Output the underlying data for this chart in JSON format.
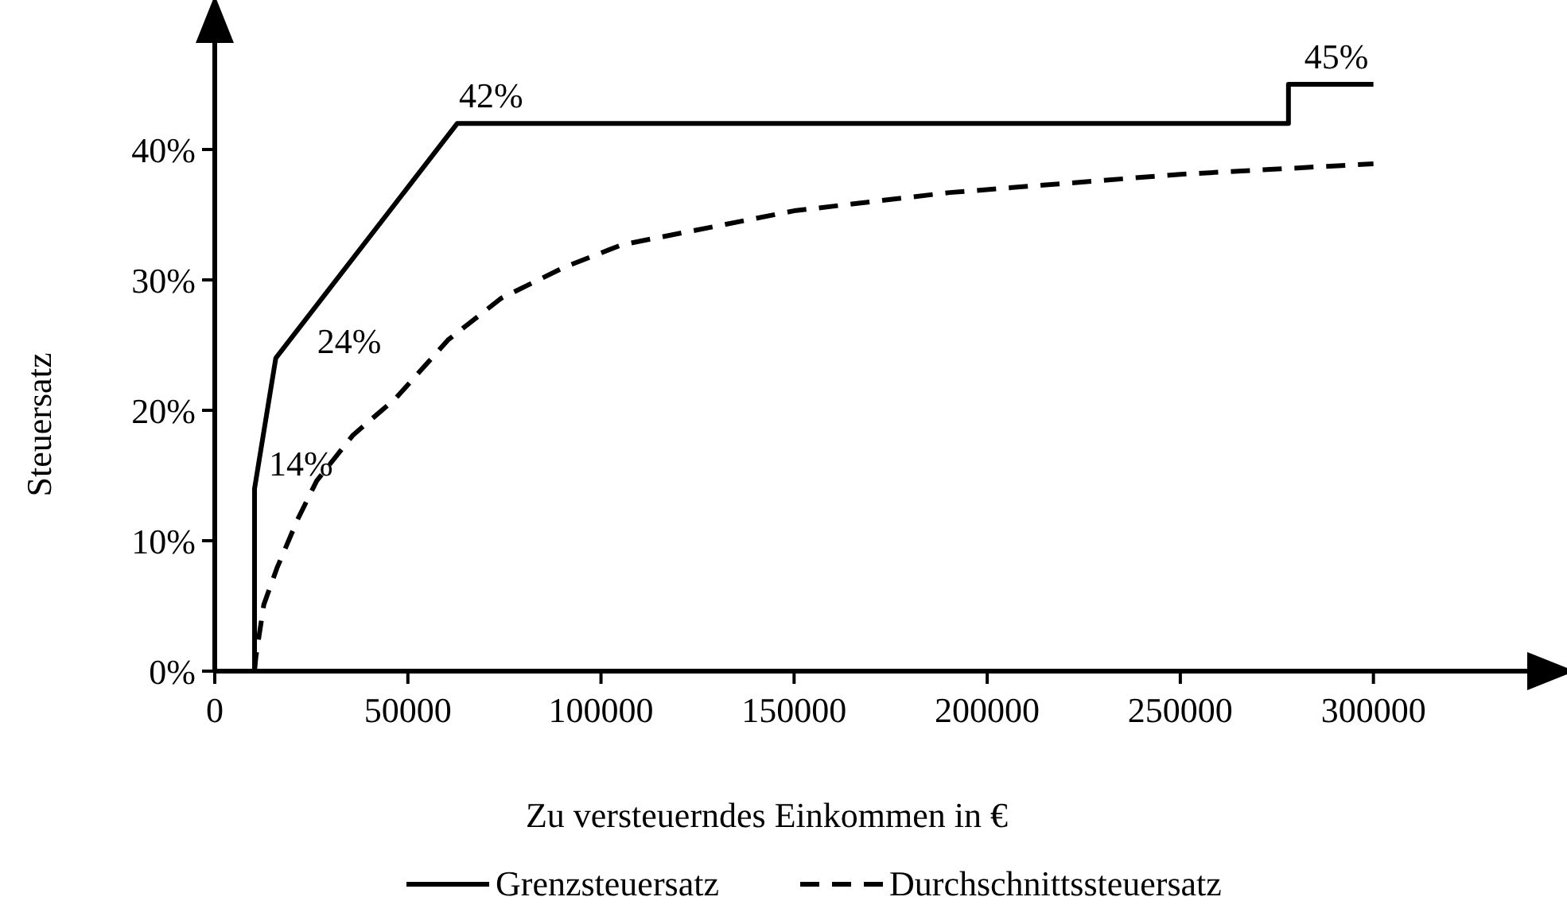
{
  "chart_data": {
    "type": "line",
    "xlabel": "Zu versteuerndes Einkommen in €",
    "ylabel": "Steuersatz",
    "xlim": [
      0,
      346000
    ],
    "ylim": [
      0,
      50
    ],
    "xticks": [
      0,
      50000,
      100000,
      150000,
      200000,
      250000,
      300000
    ],
    "yticks": [
      {
        "value": 0,
        "label": "0%"
      },
      {
        "value": 10,
        "label": "10%"
      },
      {
        "value": 20,
        "label": "20%"
      },
      {
        "value": 30,
        "label": "30%"
      },
      {
        "value": 40,
        "label": "40%"
      }
    ],
    "legend": "bottom",
    "grid": false,
    "marker": "none",
    "series": [
      {
        "name": "Grenzsteuersatz",
        "color": "#000000",
        "line_style": "solid",
        "x": [
          0,
          10300,
          10300,
          15800,
          62800,
          278000,
          278000,
          300000
        ],
        "values": [
          0,
          0,
          14,
          24,
          42,
          42,
          45,
          45
        ]
      },
      {
        "name": "Durchschnittssteuersatz",
        "color": "#000000",
        "line_style": "dashed",
        "x": [
          10300,
          10650,
          12700,
          16100,
          21400,
          26400,
          35800,
          46800,
          60400,
          74200,
          90700,
          105500,
          150000,
          190300,
          250000,
          300000
        ],
        "values": [
          0,
          1.1,
          5.1,
          7.9,
          11.6,
          14.6,
          18.1,
          20.9,
          25.4,
          28.6,
          31,
          32.7,
          35.3,
          36.7,
          38.1,
          38.9
        ]
      }
    ],
    "annotations": [
      {
        "text": "14%",
        "x": 10300,
        "y": 14
      },
      {
        "text": "24%",
        "x": 15800,
        "y": 24
      },
      {
        "text": "42%",
        "x": 62800,
        "y": 42
      },
      {
        "text": "45%",
        "x": 278000,
        "y": 45
      }
    ]
  }
}
